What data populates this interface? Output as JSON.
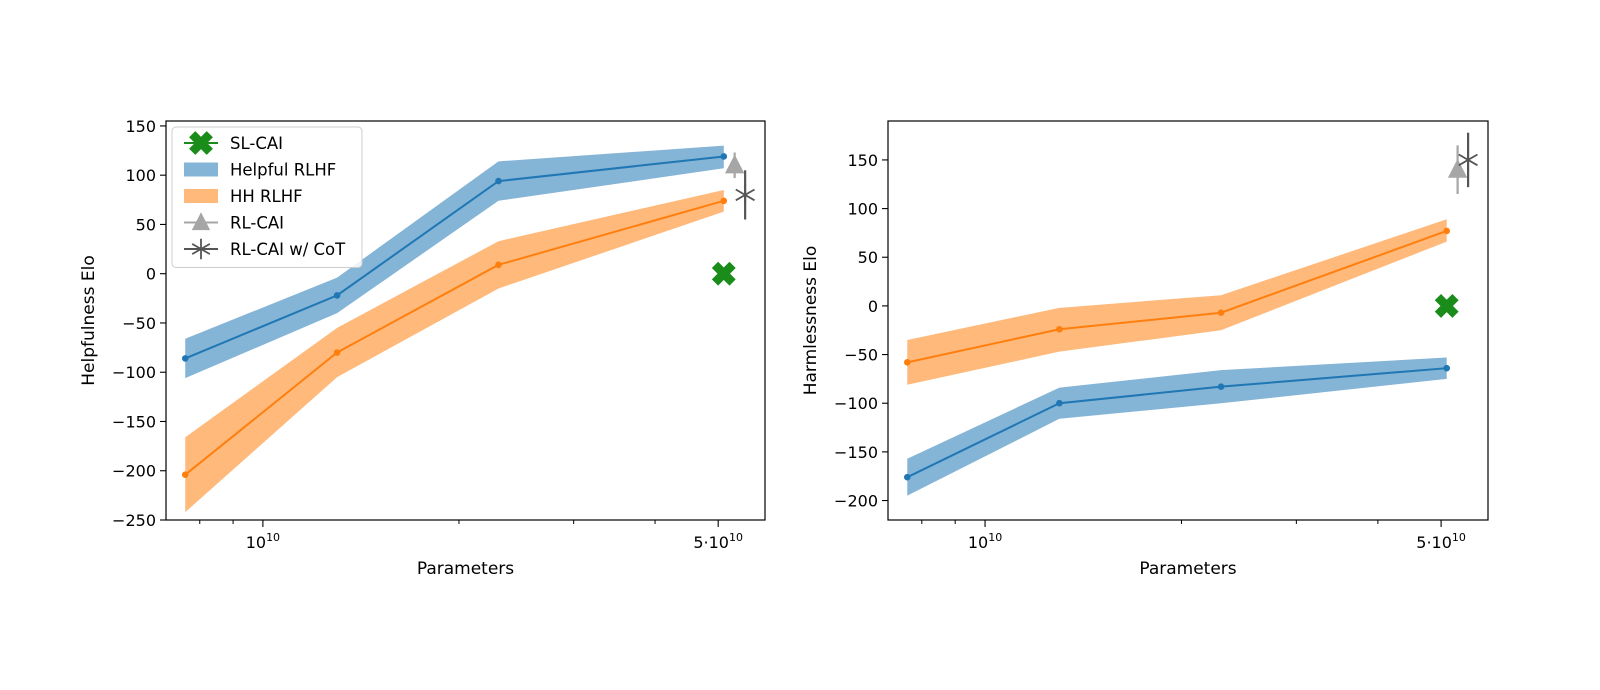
{
  "chart_data": [
    {
      "type": "line",
      "xlabel": "Parameters",
      "ylabel": "Helpfulness Elo",
      "xscale": "log",
      "xlim": [
        7100000000.0,
        59000000000.0
      ],
      "ylim": [
        -250,
        155
      ],
      "yticks": [
        150,
        100,
        50,
        0,
        -50,
        -100,
        -150,
        -200,
        -250
      ],
      "xticks_major": [
        {
          "value": 10000000000.0,
          "base": "10",
          "exp": "10"
        },
        {
          "value": 50000000000.0,
          "base": "5·10",
          "exp": "10"
        }
      ],
      "xticks_minor": [
        8000000000.0,
        9000000000.0,
        20000000000.0,
        30000000000.0,
        40000000000.0
      ],
      "legend": {
        "position": "upper-left",
        "entries": [
          {
            "label": "SL-CAI",
            "kind": "marker-x",
            "color": "#1a8c1a"
          },
          {
            "label": "Helpful RLHF",
            "kind": "band",
            "color": "#1f77b4"
          },
          {
            "label": "HH RLHF",
            "kind": "band",
            "color": "#ff7f0e"
          },
          {
            "label": "RL-CAI",
            "kind": "marker-triangle",
            "color": "#a6a6a6"
          },
          {
            "label": "RL-CAI w/ CoT",
            "kind": "marker-star",
            "color": "#555555"
          }
        ]
      },
      "series": [
        {
          "name": "Helpful RLHF",
          "color": "#1f77b4",
          "x": [
            7600000000.0,
            13000000000.0,
            23000000000.0,
            51000000000.0
          ],
          "y": [
            -86,
            -22,
            94,
            119
          ],
          "lower": [
            -106,
            -40,
            74,
            107
          ],
          "upper": [
            -66,
            -4,
            114,
            130
          ]
        },
        {
          "name": "HH RLHF",
          "color": "#ff7f0e",
          "x": [
            7600000000.0,
            13000000000.0,
            23000000000.0,
            51000000000.0
          ],
          "y": [
            -204,
            -80,
            9,
            74
          ],
          "lower": [
            -242,
            -105,
            -15,
            63
          ],
          "upper": [
            -166,
            -55,
            33,
            85
          ]
        }
      ],
      "points": [
        {
          "name": "SL-CAI",
          "x": 51000000000.0,
          "y": 0,
          "marker": "x",
          "color": "#1a8c1a",
          "err": 0
        },
        {
          "name": "RL-CAI",
          "x": 53000000000.0,
          "y": 110,
          "marker": "triangle",
          "color": "#a6a6a6",
          "err": 13
        },
        {
          "name": "RL-CAI w/ CoT",
          "x": 55000000000.0,
          "y": 80,
          "marker": "star",
          "color": "#555555",
          "err": 25
        }
      ]
    },
    {
      "type": "line",
      "xlabel": "Parameters",
      "ylabel": "Harmlessness Elo",
      "xscale": "log",
      "xlim": [
        7100000000.0,
        59000000000.0
      ],
      "ylim": [
        -220,
        190
      ],
      "yticks": [
        150,
        100,
        50,
        0,
        -50,
        -100,
        -150,
        -200
      ],
      "xticks_major": [
        {
          "value": 10000000000.0,
          "base": "10",
          "exp": "10"
        },
        {
          "value": 50000000000.0,
          "base": "5·10",
          "exp": "10"
        }
      ],
      "xticks_minor": [
        8000000000.0,
        9000000000.0,
        20000000000.0,
        30000000000.0,
        40000000000.0
      ],
      "series": [
        {
          "name": "Helpful RLHF",
          "color": "#1f77b4",
          "x": [
            7600000000.0,
            13000000000.0,
            23000000000.0,
            51000000000.0
          ],
          "y": [
            -176,
            -100,
            -83,
            -64
          ],
          "lower": [
            -195,
            -116,
            -100,
            -75
          ],
          "upper": [
            -157,
            -84,
            -66,
            -53
          ]
        },
        {
          "name": "HH RLHF",
          "color": "#ff7f0e",
          "x": [
            7600000000.0,
            13000000000.0,
            23000000000.0,
            51000000000.0
          ],
          "y": [
            -58,
            -24,
            -7,
            77
          ],
          "lower": [
            -81,
            -47,
            -25,
            66
          ],
          "upper": [
            -35,
            -2,
            11,
            89
          ]
        }
      ],
      "points": [
        {
          "name": "SL-CAI",
          "x": 51000000000.0,
          "y": 0,
          "marker": "x",
          "color": "#1a8c1a",
          "err": 0
        },
        {
          "name": "RL-CAI",
          "x": 53000000000.0,
          "y": 140,
          "marker": "triangle",
          "color": "#a6a6a6",
          "err": 25
        },
        {
          "name": "RL-CAI w/ CoT",
          "x": 55000000000.0,
          "y": 150,
          "marker": "star",
          "color": "#555555",
          "err": 28
        }
      ]
    }
  ]
}
